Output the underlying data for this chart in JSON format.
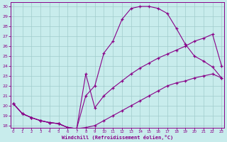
{
  "bg_color": "#c8ecec",
  "line_color": "#880088",
  "grid_color": "#a0cccc",
  "xlabel": "Windchill (Refroidissement éolien,°C)",
  "xlabel_color": "#880088",
  "xlim_min": -0.3,
  "xlim_max": 23.3,
  "ylim_min": 17.8,
  "ylim_max": 30.4,
  "xticks": [
    0,
    1,
    2,
    3,
    4,
    5,
    6,
    7,
    8,
    9,
    10,
    11,
    12,
    13,
    14,
    15,
    16,
    17,
    18,
    19,
    20,
    21,
    22,
    23
  ],
  "yticks": [
    18,
    19,
    20,
    21,
    22,
    23,
    24,
    25,
    26,
    27,
    28,
    29,
    30
  ],
  "curve1_x": [
    0,
    1,
    2,
    3,
    4,
    5,
    6,
    7,
    8,
    9,
    10,
    11,
    12,
    13,
    14,
    15,
    16,
    17,
    18,
    19,
    20,
    21,
    22,
    23
  ],
  "curve1_y": [
    20.2,
    19.2,
    18.8,
    18.5,
    18.3,
    18.2,
    17.8,
    17.7,
    17.8,
    18.0,
    18.5,
    19.0,
    19.5,
    20.0,
    20.5,
    21.0,
    21.5,
    22.0,
    22.3,
    22.5,
    22.8,
    23.0,
    23.2,
    22.8
  ],
  "curve2_x": [
    0,
    1,
    2,
    3,
    4,
    5,
    6,
    7,
    8,
    9,
    10,
    11,
    12,
    13,
    14,
    15,
    16,
    17,
    18,
    19,
    20,
    21,
    22,
    23
  ],
  "curve2_y": [
    20.2,
    19.2,
    18.8,
    18.5,
    18.3,
    18.2,
    17.8,
    17.7,
    21.0,
    22.0,
    25.3,
    26.5,
    28.7,
    29.8,
    30.0,
    30.0,
    29.8,
    29.3,
    27.8,
    26.2,
    25.0,
    24.5,
    23.9,
    22.8
  ],
  "curve3_x": [
    0,
    1,
    2,
    3,
    4,
    5,
    6,
    7,
    8,
    9,
    10,
    11,
    12,
    13,
    14,
    15,
    16,
    17,
    18,
    19,
    20,
    21,
    22,
    23
  ],
  "curve3_y": [
    20.2,
    19.2,
    18.8,
    18.5,
    18.3,
    18.2,
    17.8,
    17.7,
    23.2,
    19.8,
    21.0,
    21.8,
    22.5,
    23.2,
    23.8,
    24.3,
    24.8,
    25.2,
    25.6,
    26.0,
    26.5,
    26.8,
    27.2,
    24.0
  ]
}
